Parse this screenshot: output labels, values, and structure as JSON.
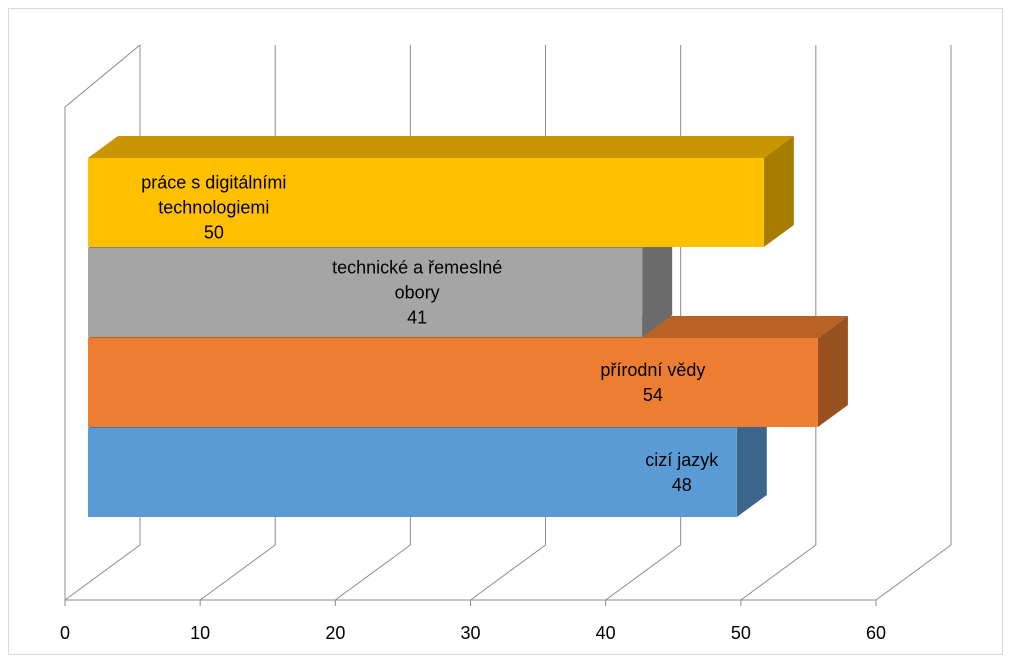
{
  "chart_data": {
    "type": "bar",
    "orientation": "horizontal",
    "style": "3d",
    "categories": [
      "cizí jazyk",
      "přírodní vědy",
      "technické a řemeslné obory",
      "práce s digitálními technologiemi"
    ],
    "values": [
      48,
      54,
      41,
      50
    ],
    "colors": [
      "#5b9bd5",
      "#ed7d31",
      "#a5a5a5",
      "#ffc000"
    ],
    "xlim": [
      0,
      60
    ],
    "xticks": [
      0,
      10,
      20,
      30,
      40,
      50,
      60
    ],
    "grid": true
  }
}
